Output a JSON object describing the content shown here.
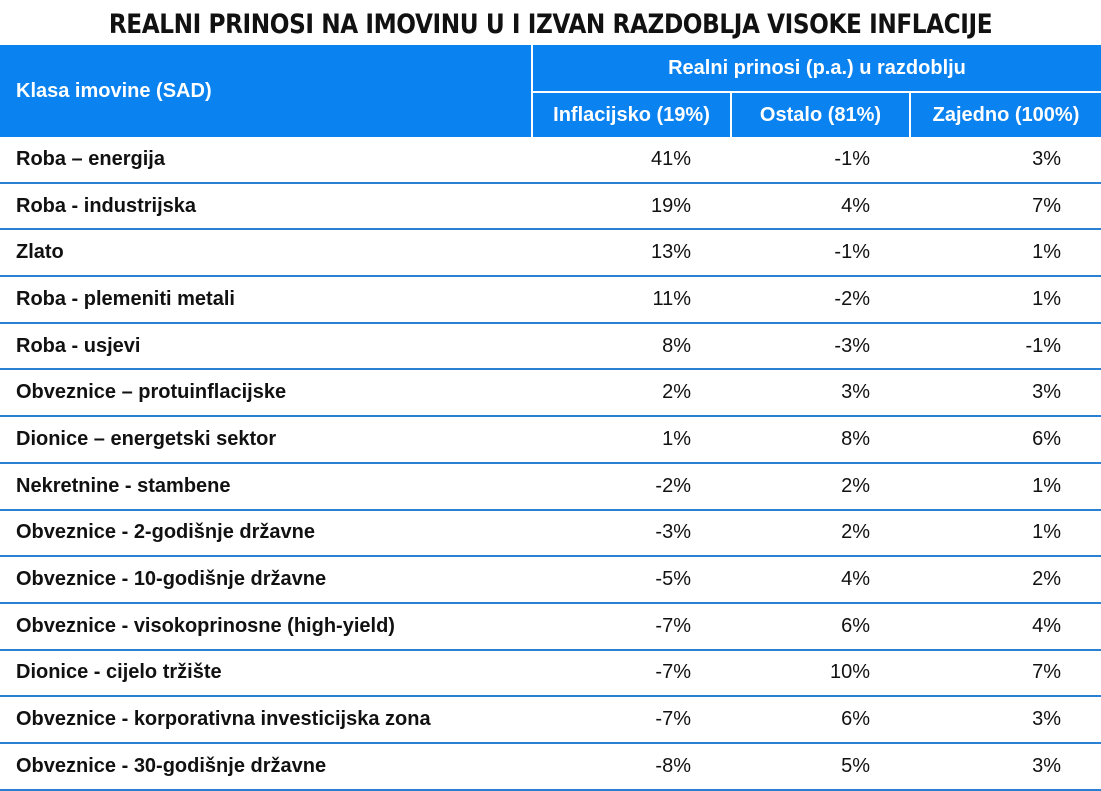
{
  "title": "REALNI PRINOSI NA IMOVINU U I IZVAN RAZDOBLJA VISOKE INFLACIJE",
  "header": {
    "class_label": "Klasa imovine (SAD)",
    "group_label": "Realni prinosi (p.a.) u razdoblju",
    "columns": [
      "Inflacijsko (19%)",
      "Ostalo (81%)",
      "Zajedno (100%)"
    ]
  },
  "colors": {
    "header_bg": "#0a82f0",
    "row_line": "#2a80d2"
  },
  "chart_data": {
    "type": "table",
    "title": "REALNI PRINOSI NA IMOVINU U I IZVAN RAZDOBLJA VISOKE INFLACIJE",
    "rows": [
      {
        "name": "Roba – energija",
        "values": [
          "41%",
          "-1%",
          "3%"
        ]
      },
      {
        "name": "Roba - industrijska",
        "values": [
          "19%",
          "4%",
          "7%"
        ]
      },
      {
        "name": "Zlato",
        "values": [
          "13%",
          "-1%",
          "1%"
        ]
      },
      {
        "name": "Roba - plemeniti metali",
        "values": [
          "11%",
          "-2%",
          "1%"
        ]
      },
      {
        "name": "Roba - usjevi",
        "values": [
          "8%",
          "-3%",
          "-1%"
        ]
      },
      {
        "name": "Obveznice – protuinflacijske",
        "values": [
          "2%",
          "3%",
          "3%"
        ]
      },
      {
        "name": "Dionice – energetski sektor",
        "values": [
          "1%",
          "8%",
          "6%"
        ]
      },
      {
        "name": "Nekretnine - stambene",
        "values": [
          "-2%",
          "2%",
          "1%"
        ]
      },
      {
        "name": "Obveznice - 2-godišnje državne",
        "values": [
          "-3%",
          "2%",
          "1%"
        ]
      },
      {
        "name": "Obveznice - 10-godišnje državne",
        "values": [
          "-5%",
          "4%",
          "2%"
        ]
      },
      {
        "name": "Obveznice - visokoprinosne (high-yield)",
        "values": [
          "-7%",
          "6%",
          "4%"
        ]
      },
      {
        "name": "Dionice - cijelo tržište",
        "values": [
          "-7%",
          "10%",
          "7%"
        ]
      },
      {
        "name": "Obveznice - korporativna investicijska zona",
        "values": [
          "-7%",
          "6%",
          "3%"
        ]
      },
      {
        "name": "Obveznice - 30-godišnje državne",
        "values": [
          "-8%",
          "5%",
          "3%"
        ]
      }
    ]
  }
}
